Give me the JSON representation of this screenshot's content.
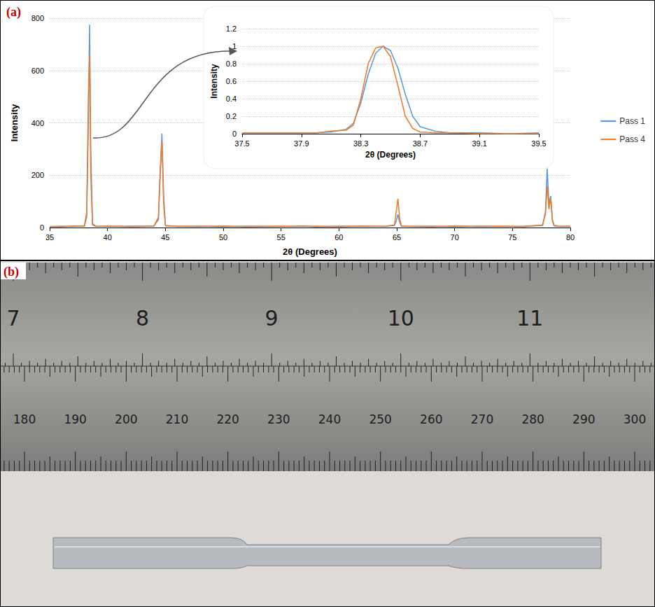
{
  "chart_data": [
    {
      "type": "line",
      "title": "(a)",
      "x_label": "2θ (Degrees)",
      "y_label": "Intensity",
      "x": [
        35,
        36,
        37,
        38,
        38.2,
        38.35,
        38.45,
        38.55,
        38.7,
        39,
        40,
        42,
        44,
        44.4,
        44.55,
        44.7,
        44.85,
        45,
        46,
        48,
        50,
        52,
        55,
        57,
        58,
        60,
        62,
        64,
        64.8,
        64.95,
        65.1,
        65.25,
        65.4,
        66,
        68,
        70,
        72,
        74,
        76,
        77.6,
        77.85,
        78.0,
        78.15,
        78.3,
        78.45,
        78.6,
        79,
        80
      ],
      "series": [
        {
          "name": "Pass 1",
          "color": "#5b9bd5",
          "values": [
            3,
            5,
            4,
            6,
            40,
            420,
            775,
            300,
            15,
            5,
            4,
            5,
            6,
            30,
            200,
            360,
            120,
            8,
            4,
            5,
            3,
            5,
            4,
            6,
            3,
            5,
            4,
            5,
            8,
            25,
            50,
            20,
            5,
            4,
            5,
            3,
            5,
            4,
            5,
            8,
            60,
            225,
            90,
            120,
            30,
            8,
            5,
            4
          ]
        },
        {
          "name": "Pass 4",
          "color": "#ed7d31",
          "values": [
            4,
            3,
            6,
            5,
            60,
            520,
            660,
            200,
            10,
            4,
            6,
            3,
            5,
            40,
            220,
            330,
            90,
            6,
            5,
            4,
            6,
            3,
            5,
            4,
            5,
            3,
            6,
            4,
            10,
            60,
            110,
            35,
            6,
            5,
            3,
            6,
            4,
            5,
            3,
            10,
            50,
            160,
            70,
            115,
            25,
            6,
            4,
            5
          ]
        }
      ],
      "xlim": [
        35,
        80
      ],
      "xticks": [
        35,
        40,
        45,
        50,
        55,
        60,
        65,
        70,
        75,
        80
      ],
      "ylim": [
        0,
        800
      ],
      "yticks": [
        0,
        200,
        400,
        600,
        800
      ],
      "grid": true,
      "legend": "right"
    },
    {
      "type": "line",
      "x_label": "2θ (Degrees)",
      "y_label": "Intensity",
      "x": [
        37.5,
        37.7,
        37.9,
        38.0,
        38.1,
        38.2,
        38.25,
        38.3,
        38.35,
        38.4,
        38.45,
        38.5,
        38.55,
        38.6,
        38.65,
        38.7,
        38.8,
        38.9,
        39.1,
        39.3,
        39.5
      ],
      "series": [
        {
          "name": "Pass 1",
          "color": "#5b9bd5",
          "values": [
            0.01,
            0.01,
            0.01,
            0.01,
            0.02,
            0.05,
            0.12,
            0.35,
            0.68,
            0.92,
            1.0,
            0.95,
            0.75,
            0.45,
            0.2,
            0.08,
            0.03,
            0.01,
            0.01,
            0,
            0.01
          ]
        },
        {
          "name": "Pass 4",
          "color": "#ed7d31",
          "values": [
            0.01,
            0.01,
            0.01,
            0.01,
            0.03,
            0.04,
            0.1,
            0.4,
            0.8,
            0.98,
            1.0,
            0.88,
            0.55,
            0.2,
            0.06,
            0.02,
            0.01,
            0.01,
            0,
            0,
            0
          ]
        }
      ],
      "xlim": [
        37.5,
        39.5
      ],
      "xticks": [
        37.5,
        37.9,
        38.3,
        38.7,
        39.1,
        39.5
      ],
      "ylim": [
        0,
        1.2
      ],
      "yticks": [
        0,
        0.2,
        0.4,
        0.6,
        0.8,
        1,
        1.2
      ],
      "grid": true
    }
  ],
  "photo": {
    "label": "(b)",
    "ruler": {
      "inch_labels": [
        "7",
        "8",
        "9",
        "10",
        "11"
      ],
      "mm_labels": [
        "180",
        "190",
        "200",
        "210",
        "220",
        "230",
        "240",
        "250",
        "260",
        "270",
        "280",
        "290",
        "300"
      ]
    }
  }
}
